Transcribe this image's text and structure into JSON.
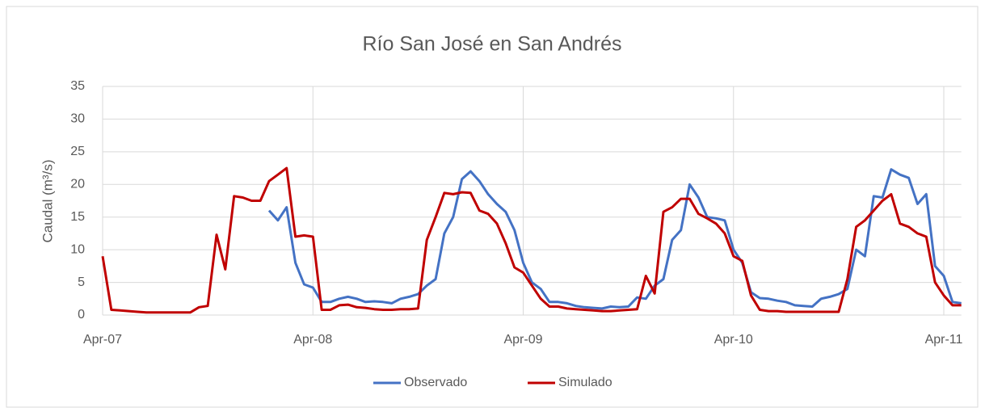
{
  "chart_data": {
    "type": "line",
    "title": "Río San José en San Andrés",
    "y_label": "Caudal (m³/s)",
    "categories": [
      "Apr-07",
      null,
      null,
      null,
      null,
      null,
      null,
      null,
      null,
      null,
      null,
      null,
      null,
      null,
      null,
      null,
      null,
      null,
      null,
      null,
      null,
      null,
      null,
      null,
      "Apr-08",
      null,
      null,
      null,
      null,
      null,
      null,
      null,
      null,
      null,
      null,
      null,
      null,
      null,
      null,
      null,
      null,
      null,
      null,
      null,
      null,
      null,
      null,
      null,
      "Apr-09",
      null,
      null,
      null,
      null,
      null,
      null,
      null,
      null,
      null,
      null,
      null,
      null,
      null,
      null,
      null,
      null,
      null,
      null,
      null,
      null,
      null,
      null,
      null,
      "Apr-10",
      null,
      null,
      null,
      null,
      null,
      null,
      null,
      null,
      null,
      null,
      null,
      null,
      null,
      null,
      null,
      null,
      null,
      null,
      null,
      null,
      null,
      null,
      null,
      "Apr-11",
      null,
      null
    ],
    "series": [
      {
        "name": "Observado",
        "color": "#4472c4",
        "values": [
          null,
          null,
          null,
          null,
          null,
          null,
          null,
          null,
          null,
          null,
          null,
          null,
          null,
          null,
          null,
          null,
          null,
          null,
          null,
          16,
          14.5,
          16.5,
          8,
          4.7,
          4.2,
          2,
          2,
          2.5,
          2.8,
          2.5,
          2,
          2.1,
          2,
          1.8,
          2.5,
          2.8,
          3.2,
          4.5,
          5.5,
          12.5,
          15,
          20.8,
          22,
          20.5,
          18.5,
          17,
          15.8,
          13,
          8,
          5,
          4,
          2,
          2,
          1.8,
          1.4,
          1.2,
          1.1,
          1,
          1.3,
          1.2,
          1.3,
          2.7,
          2.5,
          4.5,
          5.5,
          11.5,
          13,
          20,
          18,
          15,
          14.8,
          14.5,
          10,
          8,
          3.5,
          2.6,
          2.5,
          2.2,
          2,
          1.5,
          1.4,
          1.3,
          2.5,
          2.8,
          3.2,
          4,
          10,
          9,
          18.2,
          18,
          22.3,
          21.5,
          21,
          17,
          18.5,
          7.5,
          6,
          2,
          1.8
        ]
      },
      {
        "name": "Simulado",
        "color": "#c00000",
        "values": [
          9,
          0.8,
          0.7,
          0.6,
          0.5,
          0.4,
          0.4,
          0.4,
          0.4,
          0.4,
          0.4,
          1.2,
          1.4,
          12.3,
          7,
          18.2,
          18,
          17.5,
          17.5,
          20.5,
          21.5,
          22.5,
          12,
          12.2,
          12,
          0.8,
          0.8,
          1.5,
          1.6,
          1.2,
          1.1,
          0.9,
          0.8,
          0.8,
          0.9,
          0.9,
          1,
          11.5,
          15,
          18.7,
          18.5,
          18.8,
          18.7,
          16,
          15.5,
          14,
          11,
          7.3,
          6.5,
          4.5,
          2.5,
          1.3,
          1.3,
          1,
          0.9,
          0.8,
          0.7,
          0.6,
          0.6,
          0.7,
          0.8,
          0.9,
          6,
          3.3,
          15.8,
          16.5,
          17.8,
          17.8,
          15.5,
          14.8,
          14,
          12.5,
          9,
          8.3,
          3,
          0.8,
          0.6,
          0.6,
          0.5,
          0.5,
          0.5,
          0.5,
          0.5,
          0.5,
          0.5,
          5.5,
          13.5,
          14.5,
          16,
          17.5,
          18.5,
          14,
          13.5,
          12.5,
          12,
          5,
          3,
          1.5,
          1.5
        ]
      }
    ],
    "ylim": [
      0,
      35
    ],
    "yticks": [
      0,
      5,
      10,
      15,
      20,
      25,
      30,
      35
    ],
    "grid": true,
    "legend": "bottom"
  }
}
